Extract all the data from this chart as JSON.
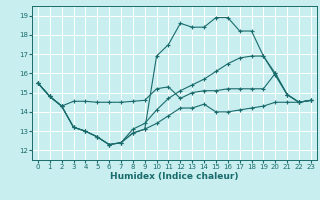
{
  "xlabel": "Humidex (Indice chaleur)",
  "bg_color": "#c8eef0",
  "grid_color": "#ffffff",
  "line_color": "#1a6b6b",
  "xlim": [
    -0.5,
    23.5
  ],
  "ylim": [
    11.5,
    19.5
  ],
  "xticks": [
    0,
    1,
    2,
    3,
    4,
    5,
    6,
    7,
    8,
    9,
    10,
    11,
    12,
    13,
    14,
    15,
    16,
    17,
    18,
    19,
    20,
    21,
    22,
    23
  ],
  "yticks": [
    12,
    13,
    14,
    15,
    16,
    17,
    18,
    19
  ],
  "line1_x": [
    0,
    1,
    2,
    3,
    4,
    5,
    6,
    7,
    8,
    9,
    10,
    11,
    12,
    13,
    14,
    15,
    16,
    17,
    18,
    19,
    20,
    21,
    22,
    23
  ],
  "line1_y": [
    15.5,
    14.8,
    14.3,
    14.55,
    14.55,
    14.5,
    14.5,
    14.5,
    14.55,
    14.6,
    15.2,
    15.3,
    14.7,
    15.0,
    15.1,
    15.1,
    15.2,
    15.2,
    15.2,
    15.2,
    16.0,
    14.9,
    14.5,
    14.6
  ],
  "line2_x": [
    0,
    1,
    2,
    3,
    4,
    5,
    6,
    7,
    8,
    9,
    10,
    11,
    12,
    13,
    14,
    15,
    16,
    17,
    18,
    19,
    20,
    21,
    22,
    23
  ],
  "line2_y": [
    15.5,
    14.8,
    14.3,
    13.2,
    13.0,
    12.7,
    12.3,
    12.4,
    12.9,
    13.1,
    16.9,
    17.5,
    18.6,
    18.4,
    18.4,
    18.9,
    18.9,
    18.2,
    18.2,
    16.9,
    15.9,
    14.9,
    14.5,
    14.6
  ],
  "line3_x": [
    0,
    1,
    2,
    3,
    4,
    5,
    6,
    7,
    8,
    9,
    10,
    11,
    12,
    13,
    14,
    15,
    16,
    17,
    18,
    19,
    20,
    21,
    22,
    23
  ],
  "line3_y": [
    15.5,
    14.8,
    14.3,
    13.2,
    13.0,
    12.7,
    12.3,
    12.4,
    13.1,
    13.4,
    14.1,
    14.7,
    15.1,
    15.4,
    15.7,
    16.1,
    16.5,
    16.8,
    16.9,
    16.9,
    16.0,
    14.9,
    14.5,
    14.6
  ],
  "line4_x": [
    0,
    1,
    2,
    3,
    4,
    5,
    6,
    7,
    8,
    9,
    10,
    11,
    12,
    13,
    14,
    15,
    16,
    17,
    18,
    19,
    20,
    21,
    22,
    23
  ],
  "line4_y": [
    15.5,
    14.8,
    14.3,
    13.2,
    13.0,
    12.7,
    12.3,
    12.4,
    12.9,
    13.1,
    13.4,
    13.8,
    14.2,
    14.2,
    14.4,
    14.0,
    14.0,
    14.1,
    14.2,
    14.3,
    14.5,
    14.5,
    14.5,
    14.6
  ]
}
